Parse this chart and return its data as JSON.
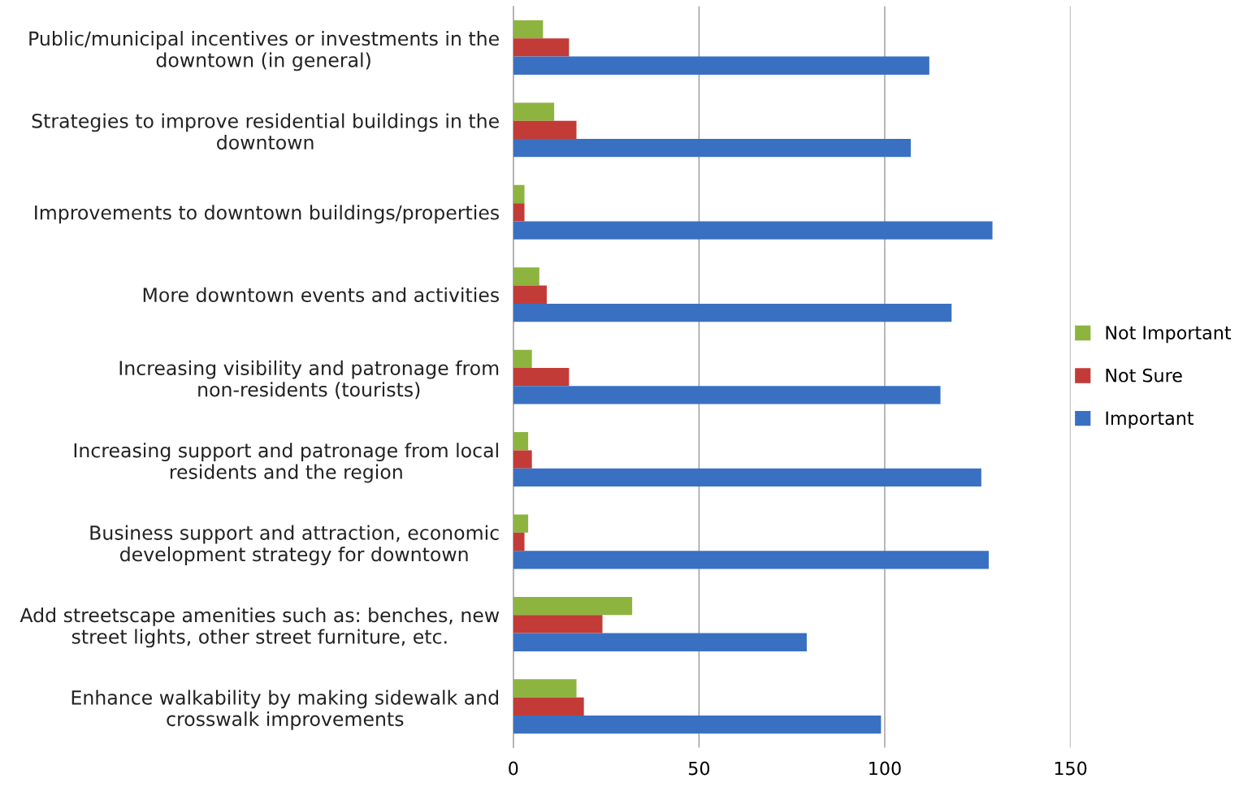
{
  "chart_data": {
    "type": "bar",
    "orientation": "horizontal",
    "categories": [
      "Public/municipal incentives or investments in the downtown (in general)",
      "Strategies to improve residential buildings in the downtown",
      "Improvements to downtown buildings/properties",
      "More downtown events and activities",
      "Increasing visibility and patronage from non-residents (tourists)",
      "Increasing support and patronage from local residents and the region",
      "Business support and attraction, economic development strategy for downtown",
      "Add streetscape amenities such as: benches, new street lights, other street furniture, etc.",
      "Enhance walkability by making sidewalk and crosswalk improvements"
    ],
    "series": [
      {
        "name": "Not Important",
        "color": "#8cb43f",
        "values": [
          8,
          11,
          3,
          7,
          5,
          4,
          4,
          32,
          17
        ]
      },
      {
        "name": "Not Sure",
        "color": "#c33b37",
        "values": [
          15,
          17,
          3,
          9,
          15,
          5,
          3,
          24,
          19
        ]
      },
      {
        "name": "Important",
        "color": "#3a70c2",
        "values": [
          112,
          107,
          129,
          118,
          115,
          126,
          128,
          79,
          99
        ]
      }
    ],
    "xlim": [
      0,
      150
    ],
    "xticks": [
      0,
      50,
      100,
      150
    ],
    "grid": "x",
    "legend": "right"
  }
}
